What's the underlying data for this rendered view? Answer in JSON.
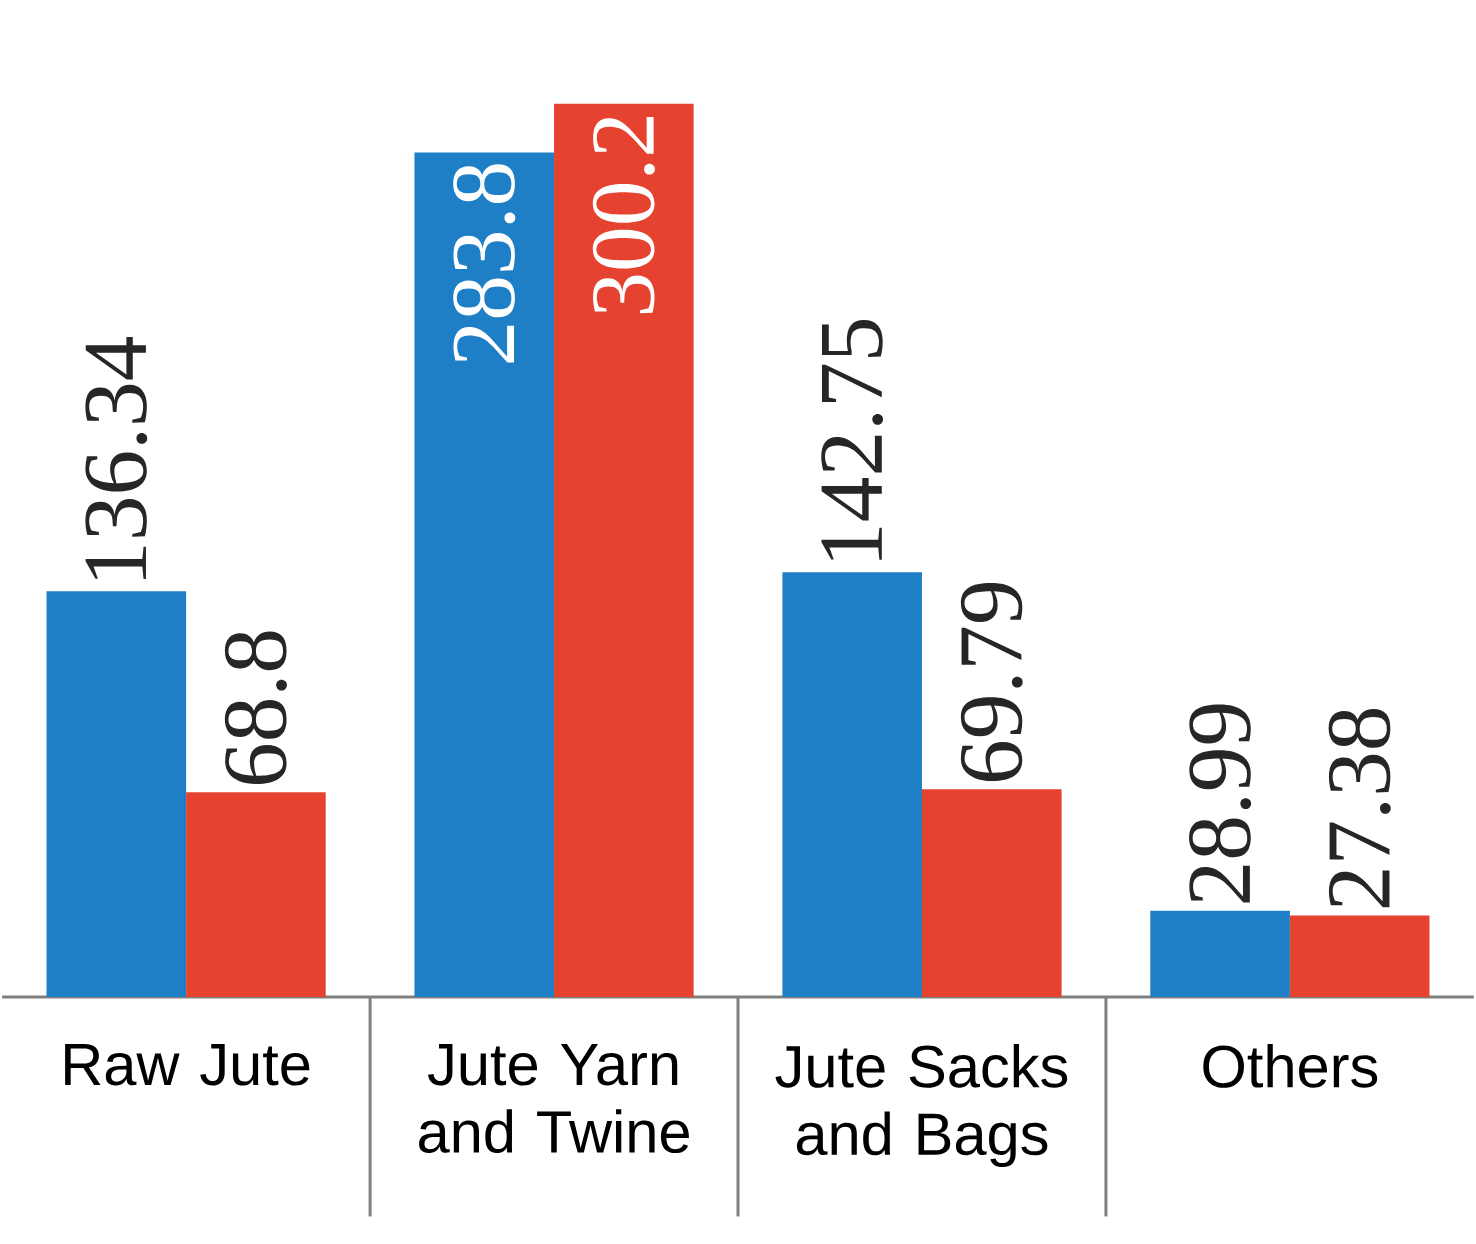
{
  "chart_data": {
    "type": "bar",
    "categories": [
      "Raw Jute",
      "Jute Yarn and Twine",
      "Jute Sacks and Bags",
      "Others"
    ],
    "series": [
      {
        "color": "#1f7fc6",
        "values": [
          136.34,
          283.8,
          142.75,
          28.99
        ]
      },
      {
        "color": "#e5432f",
        "values": [
          68.8,
          300.2,
          69.79,
          27.38
        ]
      }
    ],
    "data_labels": true
  }
}
